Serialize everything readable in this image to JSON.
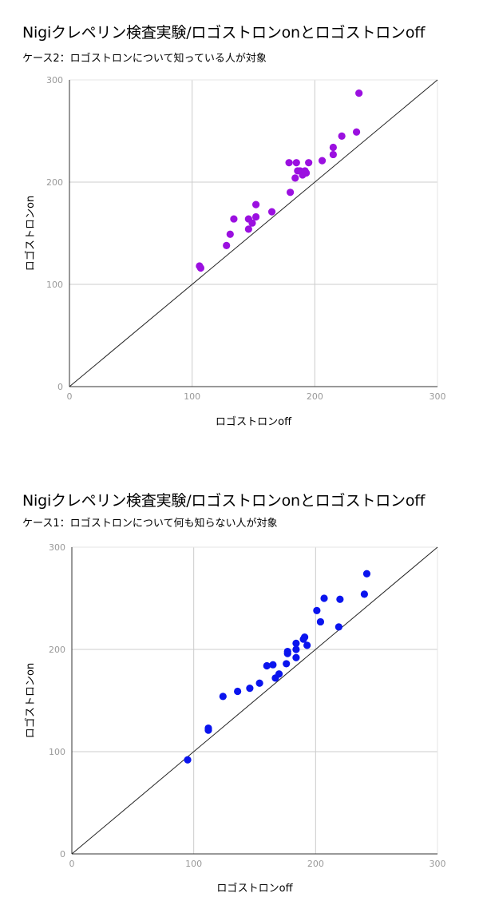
{
  "charts": [
    {
      "title": "Nigiクレペリン検査実験/ロゴストロンonとロゴストロンoff",
      "subtitle": "ケース2：ロゴストロンについて知っている人が対象"
    },
    {
      "title": "Nigiクレペリン検査実験/ロゴストロンonとロゴストロンoff",
      "subtitle": "ケース1：ロゴストロンについて何も知らない人が対象"
    }
  ],
  "chart_data": [
    {
      "type": "scatter",
      "title": "Nigiクレペリン検査実験/ロゴストロンonとロゴストロンoff",
      "subtitle": "ケース2：ロゴストロンについて知っている人が対象",
      "xlabel": "ロゴストロンoff",
      "ylabel": "ロゴストロンon",
      "xlim": [
        0,
        300
      ],
      "ylim": [
        0,
        300
      ],
      "xticks": [
        "0",
        "100",
        "200",
        "300"
      ],
      "yticks": [
        "0",
        "100",
        "200",
        "300"
      ],
      "grid": true,
      "reference_line": "y = x",
      "color": "#9b10e0",
      "points": [
        [
          106,
          118
        ],
        [
          107,
          116
        ],
        [
          128,
          138
        ],
        [
          131,
          149
        ],
        [
          134,
          164
        ],
        [
          146,
          154
        ],
        [
          146,
          164
        ],
        [
          149,
          160
        ],
        [
          152,
          166
        ],
        [
          152,
          178
        ],
        [
          165,
          171
        ],
        [
          179,
          219
        ],
        [
          180,
          190
        ],
        [
          184,
          204
        ],
        [
          185,
          219
        ],
        [
          186,
          211
        ],
        [
          188,
          211
        ],
        [
          190,
          207
        ],
        [
          192,
          211
        ],
        [
          193,
          209
        ],
        [
          195,
          219
        ],
        [
          206,
          221
        ],
        [
          215,
          227
        ],
        [
          215,
          234
        ],
        [
          222,
          245
        ],
        [
          234,
          249
        ],
        [
          236,
          287
        ]
      ]
    },
    {
      "type": "scatter",
      "title": "Nigiクレペリン検査実験/ロゴストロンonとロゴストロンoff",
      "subtitle": "ケース1：ロゴストロンについて何も知らない人が対象",
      "xlabel": "ロゴストロンoff",
      "ylabel": "ロゴストロンon",
      "xlim": [
        0,
        300
      ],
      "ylim": [
        0,
        300
      ],
      "xticks": [
        "0",
        "100",
        "200",
        "300"
      ],
      "yticks": [
        "0",
        "100",
        "200",
        "300"
      ],
      "grid": true,
      "reference_line": "y = x",
      "color": "#0a14ee",
      "points": [
        [
          95,
          92
        ],
        [
          112,
          121
        ],
        [
          112,
          123
        ],
        [
          124,
          154
        ],
        [
          136,
          159
        ],
        [
          146,
          162
        ],
        [
          154,
          167
        ],
        [
          160,
          184
        ],
        [
          165,
          185
        ],
        [
          167,
          172
        ],
        [
          170,
          176
        ],
        [
          176,
          186
        ],
        [
          177,
          196
        ],
        [
          177,
          198
        ],
        [
          184,
          192
        ],
        [
          184,
          200
        ],
        [
          184,
          206
        ],
        [
          190,
          210
        ],
        [
          191,
          212
        ],
        [
          193,
          204
        ],
        [
          201,
          238
        ],
        [
          204,
          227
        ],
        [
          207,
          250
        ],
        [
          219,
          222
        ],
        [
          220,
          249
        ],
        [
          240,
          254
        ],
        [
          242,
          274
        ]
      ]
    }
  ]
}
